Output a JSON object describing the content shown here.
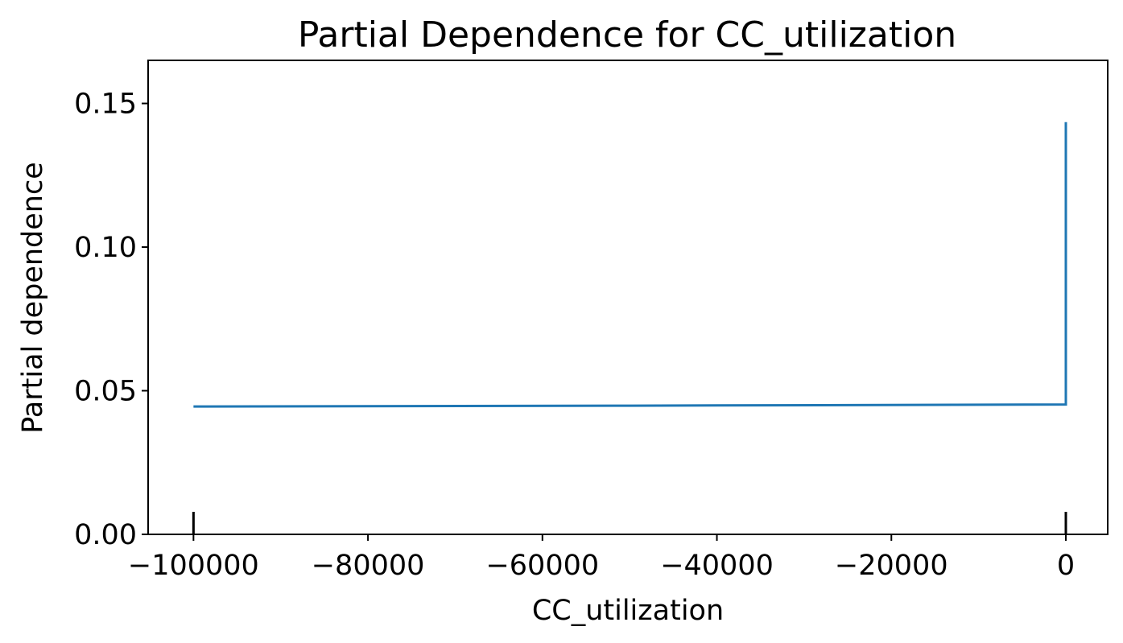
{
  "chart_data": {
    "type": "line",
    "title": "Partial Dependence for CC_utilization",
    "xlabel": "CC_utilization",
    "ylabel": "Partial dependence",
    "xlim": [
      -105200,
      4800
    ],
    "ylim": [
      0,
      0.165
    ],
    "x_ticks": [
      -100000,
      -80000,
      -60000,
      -40000,
      -20000,
      0
    ],
    "x_tick_labels": [
      "−100000",
      "−80000",
      "−60000",
      "−40000",
      "−20000",
      "0"
    ],
    "y_ticks": [
      0.0,
      0.05,
      0.1,
      0.15
    ],
    "y_tick_labels": [
      "0.00",
      "0.05",
      "0.10",
      "0.15"
    ],
    "grid": false,
    "series": [
      {
        "color": "#1f77b4",
        "x": [
          -100000,
          -50000,
          0,
          0
        ],
        "y": [
          0.0445,
          0.0448,
          0.0452,
          0.1435
        ]
      }
    ],
    "rug_x": [
      -100000,
      0
    ],
    "rug_color": "#000000"
  }
}
